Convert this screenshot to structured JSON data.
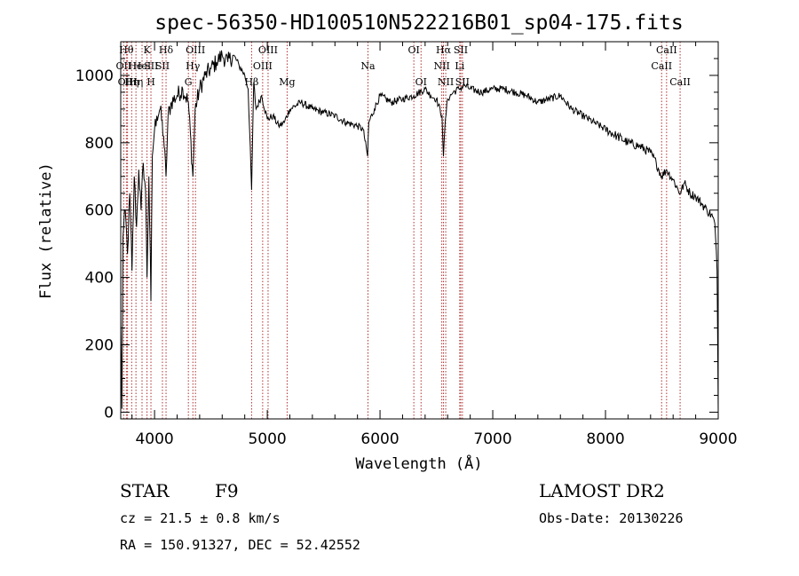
{
  "chart_data": {
    "type": "line",
    "title": "spec-56350-HD100510N522216B01_sp04-175.fits",
    "xlabel": "Wavelength (Å)",
    "ylabel": "Flux (relative)",
    "xlim": [
      3700,
      9000
    ],
    "ylim": [
      -20,
      1100
    ],
    "x_ticks": [
      4000,
      5000,
      6000,
      7000,
      8000,
      9000
    ],
    "y_ticks": [
      0,
      200,
      400,
      600,
      800,
      1000
    ],
    "grid": false,
    "series": [
      {
        "x": [
          3700,
          3710,
          3720,
          3740,
          3760,
          3780,
          3800,
          3820,
          3840,
          3860,
          3880,
          3900,
          3920,
          3933,
          3950,
          3968,
          3980,
          4000,
          4020,
          4050,
          4080,
          4102,
          4120,
          4150,
          4200,
          4250,
          4300,
          4340,
          4360,
          4400,
          4450,
          4500,
          4550,
          4600,
          4650,
          4700,
          4750,
          4800,
          4830,
          4861,
          4880,
          4900,
          4950,
          5000,
          5050,
          5100,
          5150,
          5200,
          5300,
          5400,
          5500,
          5600,
          5700,
          5800,
          5850,
          5890,
          5900,
          5950,
          6000,
          6100,
          6200,
          6300,
          6400,
          6450,
          6500,
          6550,
          6563,
          6580,
          6600,
          6650,
          6700,
          6750,
          6800,
          6900,
          7000,
          7100,
          7200,
          7300,
          7400,
          7500,
          7600,
          7700,
          7800,
          7900,
          8000,
          8100,
          8200,
          8300,
          8400,
          8450,
          8498,
          8542,
          8600,
          8662,
          8700,
          8750,
          8800,
          8850,
          8900,
          8950,
          8970,
          8990,
          9000
        ],
        "values": [
          270,
          10,
          520,
          600,
          470,
          650,
          420,
          700,
          550,
          720,
          600,
          740,
          660,
          400,
          700,
          330,
          760,
          840,
          880,
          900,
          820,
          700,
          880,
          920,
          940,
          960,
          920,
          700,
          900,
          960,
          1000,
          1020,
          1040,
          1060,
          1040,
          1060,
          1030,
          1000,
          960,
          660,
          980,
          900,
          940,
          870,
          880,
          850,
          860,
          900,
          920,
          900,
          890,
          880,
          860,
          850,
          840,
          760,
          860,
          900,
          940,
          920,
          930,
          940,
          960,
          940,
          930,
          880,
          760,
          870,
          930,
          950,
          960,
          970,
          960,
          950,
          960,
          960,
          950,
          940,
          920,
          930,
          940,
          900,
          880,
          860,
          840,
          820,
          800,
          790,
          770,
          740,
          700,
          720,
          690,
          650,
          680,
          650,
          640,
          620,
          600,
          580,
          560,
          420,
          0
        ]
      }
    ],
    "line_labels": [
      {
        "wl": 3750,
        "text": "Hθ",
        "row": 0
      },
      {
        "wl": 3726,
        "text": "OII",
        "row": 1
      },
      {
        "wl": 3760,
        "text": "OIII",
        "row": 2
      },
      {
        "wl": 3797,
        "text": "Hη",
        "row": 2
      },
      {
        "wl": 3835,
        "text": "Hη",
        "row": 2
      },
      {
        "wl": 3830,
        "text": "He",
        "row": 1
      },
      {
        "wl": 3889,
        "text": "HeI",
        "row": 1
      },
      {
        "wl": 3933,
        "text": "K",
        "row": 0
      },
      {
        "wl": 3968,
        "text": "H",
        "row": 2
      },
      {
        "wl": 3970,
        "text": "SII",
        "row": 1
      },
      {
        "wl": 4070,
        "text": "SII",
        "row": 1
      },
      {
        "wl": 4102,
        "text": "Hδ",
        "row": 0
      },
      {
        "wl": 4340,
        "text": "Hγ",
        "row": 1
      },
      {
        "wl": 4300,
        "text": "G",
        "row": 2
      },
      {
        "wl": 4363,
        "text": "OIII",
        "row": 0
      },
      {
        "wl": 4861,
        "text": "Hβ",
        "row": 2
      },
      {
        "wl": 4959,
        "text": "OIII",
        "row": 1
      },
      {
        "wl": 5007,
        "text": "OIII",
        "row": 0
      },
      {
        "wl": 5176,
        "text": "Mg",
        "row": 2
      },
      {
        "wl": 5893,
        "text": "Na",
        "row": 1
      },
      {
        "wl": 6300,
        "text": "OI",
        "row": 0
      },
      {
        "wl": 6364,
        "text": "OI",
        "row": 2
      },
      {
        "wl": 6548,
        "text": "NII",
        "row": 1
      },
      {
        "wl": 6563,
        "text": "Hα",
        "row": 0
      },
      {
        "wl": 6583,
        "text": "NII",
        "row": 2
      },
      {
        "wl": 6707,
        "text": "Li",
        "row": 1
      },
      {
        "wl": 6716,
        "text": "SII",
        "row": 0
      },
      {
        "wl": 6731,
        "text": "SII",
        "row": 2
      },
      {
        "wl": 8498,
        "text": "CaII",
        "row": 1
      },
      {
        "wl": 8542,
        "text": "CaII",
        "row": 0
      },
      {
        "wl": 8662,
        "text": "CaII",
        "row": 2
      }
    ]
  },
  "info": {
    "object_type": "STAR",
    "subclass": "F9",
    "survey": "LAMOST DR2",
    "cz": "cz = 21.5 ± 0.8 km/s",
    "obs_date": "Obs-Date: 20130226",
    "coords": "RA = 150.91327, DEC =  52.42552"
  }
}
